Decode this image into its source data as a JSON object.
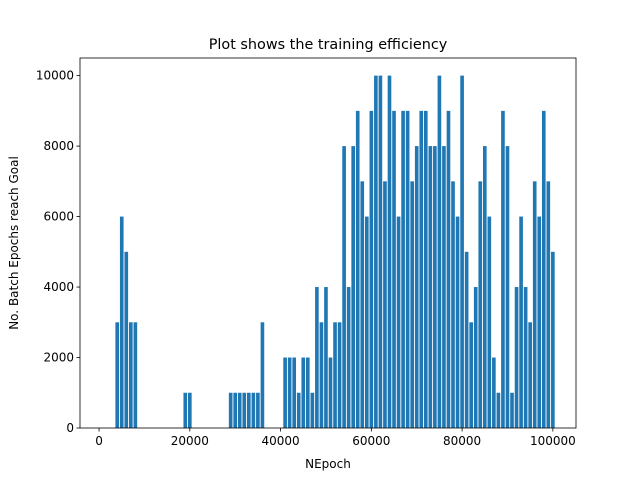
{
  "chart_data": {
    "type": "bar",
    "title": "Plot shows the training efficiency",
    "x_label": "NEpoch",
    "y_label": "No. Batch Epochs reach Goal",
    "color": "#1f77b4",
    "bar_width": 800,
    "x": [
      4000,
      5000,
      6000,
      7000,
      8000,
      19000,
      20000,
      29000,
      30000,
      31000,
      32000,
      33000,
      34000,
      35000,
      36000,
      41000,
      42000,
      43000,
      44000,
      45000,
      46000,
      47000,
      48000,
      49000,
      50000,
      51000,
      52000,
      53000,
      54000,
      55000,
      56000,
      57000,
      58000,
      59000,
      60000,
      61000,
      62000,
      63000,
      64000,
      65000,
      66000,
      67000,
      68000,
      69000,
      70000,
      71000,
      72000,
      73000,
      74000,
      75000,
      76000,
      77000,
      78000,
      79000,
      80000,
      81000,
      82000,
      83000,
      84000,
      85000,
      86000,
      87000,
      88000,
      89000,
      90000,
      91000,
      92000,
      93000,
      94000,
      95000,
      96000,
      97000,
      98000,
      99000,
      100000
    ],
    "values": [
      3000,
      6000,
      5000,
      3000,
      3000,
      1000,
      1000,
      1000,
      1000,
      1000,
      1000,
      1000,
      1000,
      1000,
      3000,
      2000,
      2000,
      2000,
      1000,
      2000,
      2000,
      1000,
      4000,
      3000,
      4000,
      2000,
      3000,
      3000,
      8000,
      4000,
      8000,
      9000,
      7000,
      6000,
      9000,
      10000,
      10000,
      7000,
      10000,
      9000,
      6000,
      9000,
      9000,
      7000,
      8000,
      9000,
      9000,
      8000,
      8000,
      10000,
      8000,
      9000,
      7000,
      6000,
      10000,
      5000,
      3000,
      4000,
      7000,
      8000,
      6000,
      2000,
      1000,
      9000,
      8000,
      1000,
      4000,
      6000,
      4000,
      3000,
      7000,
      6000,
      9000,
      7000,
      5000
    ],
    "xlim": [
      -4200,
      105100
    ],
    "ylim": [
      0,
      10500
    ],
    "xticks": [
      0,
      20000,
      40000,
      60000,
      80000,
      100000
    ],
    "yticks": [
      0,
      2000,
      4000,
      6000,
      8000,
      10000
    ]
  }
}
